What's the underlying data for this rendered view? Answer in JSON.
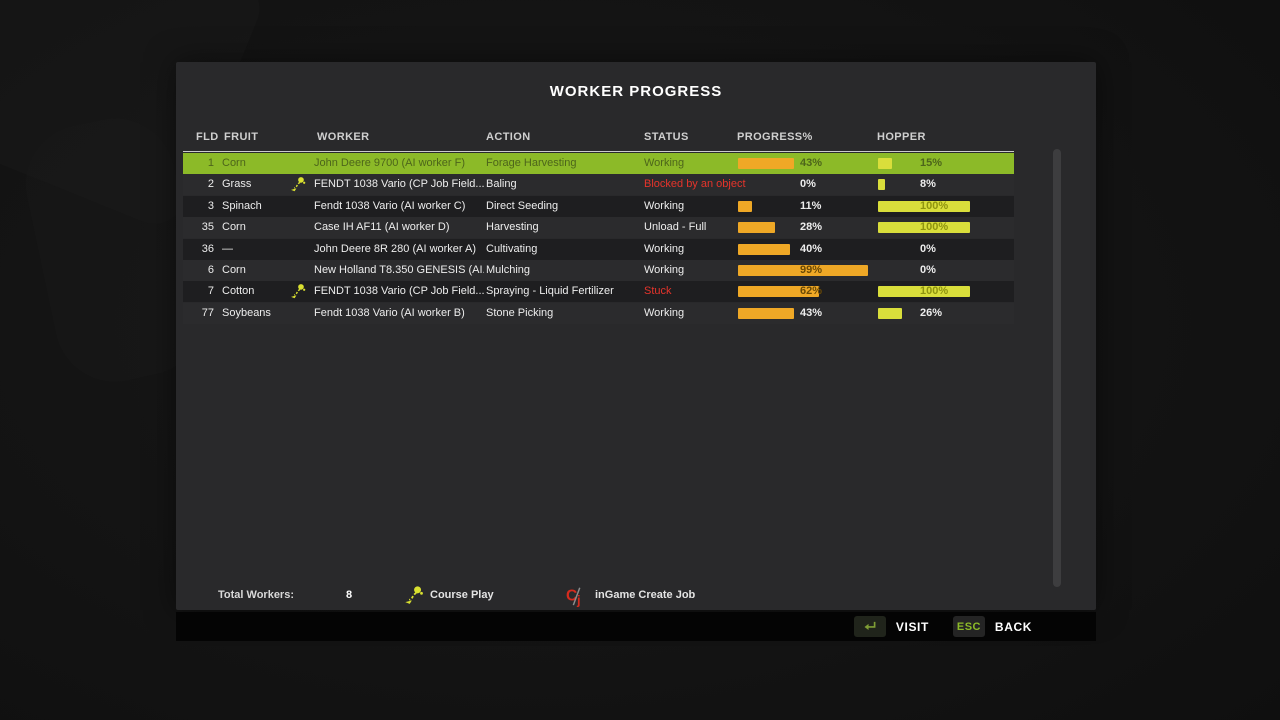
{
  "title": "WORKER PROGRESS",
  "columns": [
    {
      "key": "fld",
      "label": "FLD"
    },
    {
      "key": "fruit",
      "label": "FRUIT"
    },
    {
      "key": "worker",
      "label": "WORKER"
    },
    {
      "key": "action",
      "label": "ACTION"
    },
    {
      "key": "status",
      "label": "STATUS"
    },
    {
      "key": "progress",
      "label": "PROGRESS%"
    },
    {
      "key": "hopper",
      "label": "HOPPER"
    }
  ],
  "rows": [
    {
      "fld": "1",
      "fruit": "Corn",
      "cp_icon": false,
      "worker": "John Deere 9700 (AI worker F)",
      "action": "Forage Harvesting",
      "status": "Working",
      "status_alert": false,
      "progress_pct": 43,
      "progress_label": "43%",
      "hopper_pct": 15,
      "hopper_label": "15%",
      "selected": true
    },
    {
      "fld": "2",
      "fruit": "Grass",
      "cp_icon": true,
      "worker": "FENDT 1038 Vario  (CP Job Field...",
      "action": "Baling",
      "status": "Blocked by an object",
      "status_alert": true,
      "progress_pct": 0,
      "progress_label": "0%",
      "hopper_pct": 8,
      "hopper_label": "8%",
      "selected": false
    },
    {
      "fld": "3",
      "fruit": "Spinach",
      "cp_icon": false,
      "worker": "Fendt 1038 Vario (AI worker C)",
      "action": "Direct Seeding",
      "status": "Working",
      "status_alert": false,
      "progress_pct": 11,
      "progress_label": "11%",
      "hopper_pct": 100,
      "hopper_label": "100%",
      "selected": false
    },
    {
      "fld": "35",
      "fruit": "Corn",
      "cp_icon": false,
      "worker": "Case IH AF11 (AI worker D)",
      "action": "Harvesting",
      "status": "Unload - Full",
      "status_alert": false,
      "progress_pct": 28,
      "progress_label": "28%",
      "hopper_pct": 100,
      "hopper_label": "100%",
      "selected": false
    },
    {
      "fld": "36",
      "fruit": "—",
      "cp_icon": false,
      "worker": "John Deere 8R 280 (AI worker A)",
      "action": "Cultivating",
      "status": "Working",
      "status_alert": false,
      "progress_pct": 40,
      "progress_label": "40%",
      "hopper_pct": 0,
      "hopper_label": "0%",
      "selected": false
    },
    {
      "fld": "6",
      "fruit": "Corn",
      "cp_icon": false,
      "worker": "New Holland T8.350 GENESIS (AI...",
      "action": "Mulching",
      "status": "Working",
      "status_alert": false,
      "progress_pct": 99,
      "progress_label": "99%",
      "hopper_pct": 0,
      "hopper_label": "0%",
      "selected": false
    },
    {
      "fld": "7",
      "fruit": "Cotton",
      "cp_icon": true,
      "worker": "FENDT 1038 Vario  (CP Job Field...",
      "action": "Spraying - Liquid Fertilizer",
      "status": "Stuck",
      "status_alert": true,
      "progress_pct": 62,
      "progress_label": "62%",
      "hopper_pct": 100,
      "hopper_label": "100%",
      "selected": false
    },
    {
      "fld": "77",
      "fruit": "Soybeans",
      "cp_icon": false,
      "worker": "Fendt 1038 Vario (AI worker B)",
      "action": "Stone Picking",
      "status": "Working",
      "status_alert": false,
      "progress_pct": 43,
      "progress_label": "43%",
      "hopper_pct": 26,
      "hopper_label": "26%",
      "selected": false
    }
  ],
  "footer": {
    "total_workers_label": "Total Workers:",
    "total_workers_value": "8",
    "courseplay_label": "Course Play",
    "ingame_label": "inGame Create Job"
  },
  "actionbar": {
    "visit_label": "VISIT",
    "esc_label": "ESC",
    "back_label": "BACK"
  },
  "icons": {
    "courseplay": "courseplay-route-icon",
    "create_job": "cj-create-job-icon",
    "enter_key": "enter-key-icon"
  },
  "colors": {
    "selected_row": "#8cba28",
    "selected_text": "#4d651b",
    "progress_bar": "#efa826",
    "progress_inbar_text": "#6b4a05",
    "hopper_bar": "#d9de3b",
    "hopper_inbar_text": "#8f940f",
    "alert_red": "#e5342b",
    "normal_text": "#ededed"
  }
}
